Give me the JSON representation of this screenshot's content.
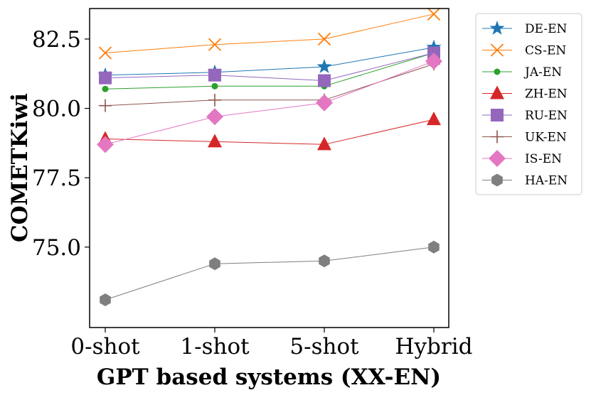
{
  "chart_data": {
    "type": "line",
    "title": "",
    "xlabel": "GPT based systems (XX-EN)",
    "ylabel": "COMETKiwi",
    "categories": [
      "0-shot",
      "1-shot",
      "5-shot",
      "Hybrid"
    ],
    "ylim": [
      72.1,
      83.6
    ],
    "yticks": [
      75.0,
      77.5,
      80.0,
      82.5
    ],
    "ytick_labels": [
      "75.0",
      "77.5",
      "80.0",
      "82.5"
    ],
    "grid": false,
    "legend_position": "outside-right",
    "series": [
      {
        "name": "DE-EN",
        "color": "#1f77b4",
        "marker": "star",
        "values": [
          81.2,
          81.3,
          81.5,
          82.2
        ]
      },
      {
        "name": "CS-EN",
        "color": "#ff7f0e",
        "marker": "x",
        "values": [
          82.0,
          82.3,
          82.5,
          83.4
        ]
      },
      {
        "name": "JA-EN",
        "color": "#2ca02c",
        "marker": "dot",
        "values": [
          80.7,
          80.8,
          80.8,
          82.0
        ]
      },
      {
        "name": "ZH-EN",
        "color": "#d62728",
        "marker": "triangle",
        "values": [
          78.9,
          78.8,
          78.7,
          79.6
        ]
      },
      {
        "name": "RU-EN",
        "color": "#9467bd",
        "marker": "square",
        "values": [
          81.1,
          81.2,
          81.0,
          82.0
        ]
      },
      {
        "name": "UK-EN",
        "color": "#8c564b",
        "marker": "plus",
        "values": [
          80.1,
          80.3,
          80.3,
          81.6
        ]
      },
      {
        "name": "IS-EN",
        "color": "#e377c2",
        "marker": "diamond",
        "values": [
          78.7,
          79.7,
          80.2,
          81.7
        ]
      },
      {
        "name": "HA-EN",
        "color": "#7f7f7f",
        "marker": "hexagon",
        "values": [
          73.1,
          74.4,
          74.5,
          75.0
        ]
      }
    ]
  }
}
